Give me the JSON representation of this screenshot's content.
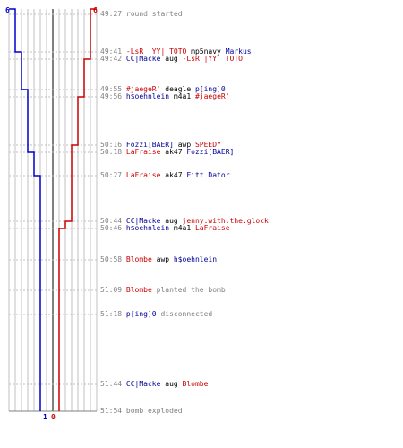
{
  "colors": {
    "blue_team": "#0000cc",
    "red_team": "#cc0000",
    "grid": "#c0c0c0",
    "center_line": "#808080",
    "time_text": "#808080",
    "background": "#ffffff"
  },
  "counts": {
    "blue_start": "6",
    "red_start": "6",
    "blue_end": "1",
    "red_end": "0"
  },
  "timeline": {
    "blue_steps": [
      6,
      5,
      4,
      3,
      2,
      1
    ],
    "red_steps": [
      6,
      5,
      4,
      3,
      2,
      1,
      0
    ]
  },
  "events": [
    {
      "time": "49:27",
      "parts": [
        {
          "text": "round started",
          "color": "gray"
        }
      ]
    },
    {
      "time": "49:41",
      "parts": [
        {
          "text": "-LsR |YY| TOTO",
          "color": "red"
        },
        {
          "text": " mp5navy ",
          "color": "black"
        },
        {
          "text": "Markus",
          "color": "blue"
        }
      ]
    },
    {
      "time": "49:42",
      "parts": [
        {
          "text": "CC|Macke",
          "color": "blue"
        },
        {
          "text": " aug ",
          "color": "black"
        },
        {
          "text": "-LsR |YY| TOTO",
          "color": "red"
        }
      ]
    },
    {
      "time": "49:55",
      "parts": [
        {
          "text": "#jaegeR'",
          "color": "red"
        },
        {
          "text": " deagle ",
          "color": "black"
        },
        {
          "text": "p[ing]0",
          "color": "blue"
        }
      ]
    },
    {
      "time": "49:56",
      "parts": [
        {
          "text": "h$oehnlein",
          "color": "blue"
        },
        {
          "text": " m4a1 ",
          "color": "black"
        },
        {
          "text": "#jaegeR'",
          "color": "red"
        }
      ]
    },
    {
      "time": "50:16",
      "parts": [
        {
          "text": "Fozzi[BAER]",
          "color": "blue"
        },
        {
          "text": " awp ",
          "color": "black"
        },
        {
          "text": "SPEEDY",
          "color": "red"
        }
      ]
    },
    {
      "time": "50:18",
      "parts": [
        {
          "text": "LaFraise",
          "color": "red"
        },
        {
          "text": " ak47 ",
          "color": "black"
        },
        {
          "text": "Fozzi[BAER]",
          "color": "blue"
        }
      ]
    },
    {
      "time": "50:27",
      "parts": [
        {
          "text": "LaFraise",
          "color": "red"
        },
        {
          "text": " ak47 ",
          "color": "black"
        },
        {
          "text": "Fitt Dator",
          "color": "blue"
        }
      ]
    },
    {
      "time": "50:44",
      "parts": [
        {
          "text": "CC|Macke",
          "color": "blue"
        },
        {
          "text": " aug ",
          "color": "black"
        },
        {
          "text": "jenny.with.the.glock",
          "color": "red"
        }
      ]
    },
    {
      "time": "50:46",
      "parts": [
        {
          "text": "h$oehnlein",
          "color": "blue"
        },
        {
          "text": " m4a1 ",
          "color": "black"
        },
        {
          "text": "LaFraise",
          "color": "red"
        }
      ]
    },
    {
      "time": "50:58",
      "parts": [
        {
          "text": "Blombe",
          "color": "red"
        },
        {
          "text": " awp ",
          "color": "black"
        },
        {
          "text": "h$oehnlein",
          "color": "blue"
        }
      ]
    },
    {
      "time": "51:09",
      "parts": [
        {
          "text": "Blombe",
          "color": "red"
        },
        {
          "text": " planted the bomb",
          "color": "gray"
        }
      ]
    },
    {
      "time": "51:18",
      "parts": [
        {
          "text": "p[ing]0",
          "color": "blue"
        },
        {
          "text": " disconnected",
          "color": "gray"
        }
      ]
    },
    {
      "time": "51:44",
      "parts": [
        {
          "text": "CC|Macke",
          "color": "blue"
        },
        {
          "text": " aug ",
          "color": "black"
        },
        {
          "text": "Blombe",
          "color": "red"
        }
      ]
    },
    {
      "time": "51:54",
      "parts": [
        {
          "text": "bomb exploded",
          "color": "gray"
        }
      ]
    }
  ]
}
